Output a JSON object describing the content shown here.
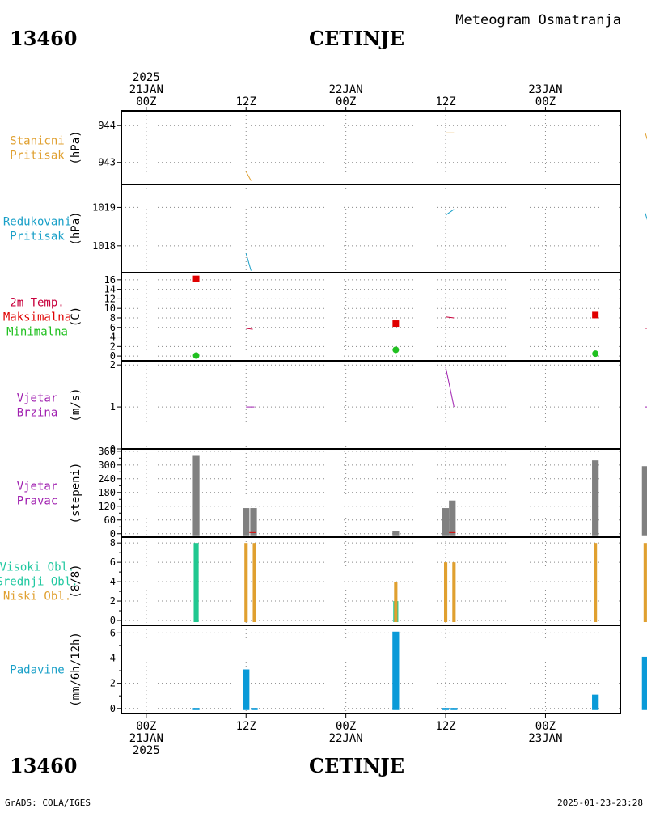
{
  "header": {
    "station_id": "13460",
    "station_name": "CETINJE",
    "title": "Meteogram Osmatranja"
  },
  "footer": {
    "left": "GrADS: COLA/IGES",
    "right": "2025-01-23-23:28"
  },
  "chart_data": {
    "type": "meteogram",
    "time_axis": {
      "unit": "hours since 2025-01-21 00Z",
      "range_hours": [
        -3,
        57
      ],
      "ticks_top": [
        {
          "hour": 0,
          "lines": [
            "2025",
            "21JAN",
            "00Z"
          ]
        },
        {
          "hour": 12,
          "lines": [
            "12Z"
          ]
        },
        {
          "hour": 24,
          "lines": [
            "22JAN",
            "00Z"
          ]
        },
        {
          "hour": 36,
          "lines": [
            "12Z"
          ]
        },
        {
          "hour": 48,
          "lines": [
            "23JAN",
            "00Z"
          ]
        },
        {
          "hour": 60,
          "lines": [
            "12Z"
          ]
        }
      ],
      "ticks_bottom": [
        {
          "hour": 0,
          "lines": [
            "00Z",
            "21JAN",
            "2025"
          ]
        },
        {
          "hour": 12,
          "lines": [
            "12Z"
          ]
        },
        {
          "hour": 24,
          "lines": [
            "00Z",
            "22JAN"
          ]
        },
        {
          "hour": 36,
          "lines": [
            "12Z"
          ]
        },
        {
          "hour": 48,
          "lines": [
            "00Z",
            "23JAN"
          ]
        },
        {
          "hour": 60,
          "lines": [
            "12Z"
          ]
        }
      ]
    },
    "panels": [
      {
        "id": "station-pressure",
        "labels": [
          {
            "text": "Stanicni",
            "color": "#e0a030"
          },
          {
            "text": "Pritisak",
            "color": "#e0a030"
          }
        ],
        "ylabel": "(hPa)",
        "ylim": [
          942.4,
          944.4
        ],
        "yticks": [
          943,
          944
        ],
        "grid_y": [
          943,
          944
        ],
        "series": [
          {
            "kind": "segments",
            "color": "#e0a030",
            "segments": [
              [
                [
                  12,
                  942.75
                ],
                [
                  12.6,
                  942.5
                ]
              ],
              [
                [
                  36,
                  943.8
                ],
                [
                  37,
                  943.8
                ]
              ],
              [
                [
                  60,
                  943.8
                ],
                [
                  60.7,
                  943.3
                ]
              ]
            ]
          }
        ]
      },
      {
        "id": "reduced-pressure",
        "labels": [
          {
            "text": "Redukovani",
            "color": "#1aa0c8"
          },
          {
            "text": "Pritisak",
            "color": "#1aa0c8"
          }
        ],
        "ylabel": "(hPa)",
        "ylim": [
          1017.3,
          1019.6
        ],
        "yticks": [
          1018,
          1019
        ],
        "grid_y": [
          1018,
          1019
        ],
        "series": [
          {
            "kind": "segments",
            "color": "#1aa0c8",
            "segments": [
              [
                [
                  12,
                  1017.8
                ],
                [
                  12.6,
                  1017.35
                ]
              ],
              [
                [
                  36,
                  1018.8
                ],
                [
                  37,
                  1018.95
                ]
              ],
              [
                [
                  60,
                  1018.85
                ],
                [
                  60.8,
                  1018.3
                ]
              ]
            ]
          }
        ]
      },
      {
        "id": "temperature",
        "labels": [
          {
            "text": "2m Temp.",
            "color": "#c8003c"
          },
          {
            "text": "Maksimalna",
            "color": "#e00000"
          },
          {
            "text": "Minimalna",
            "color": "#20c020"
          }
        ],
        "ylabel": "(C)",
        "ylim": [
          -1,
          17.5
        ],
        "yticks": [
          0,
          2,
          4,
          6,
          8,
          10,
          12,
          14,
          16
        ],
        "grid_y": [
          0,
          2,
          4,
          6,
          8,
          10,
          12,
          14,
          16
        ],
        "series": [
          {
            "name": "2m Temp.",
            "kind": "segments",
            "color": "#c8003c",
            "segments": [
              [
                [
                  12,
                  5.8
                ],
                [
                  12.8,
                  5.6
                ]
              ],
              [
                [
                  36,
                  8.2
                ],
                [
                  37,
                  8.0
                ]
              ],
              [
                [
                  60,
                  5.8
                ],
                [
                  61,
                  5.8
                ]
              ]
            ]
          },
          {
            "name": "Maksimalna",
            "kind": "squares",
            "color": "#e00000",
            "points": [
              [
                6,
                16.2
              ],
              [
                30,
                6.8
              ],
              [
                54,
                8.6
              ]
            ]
          },
          {
            "name": "Minimalna",
            "kind": "circles",
            "color": "#20c020",
            "points": [
              [
                6,
                0.1
              ],
              [
                30,
                1.3
              ],
              [
                54,
                0.5
              ]
            ]
          }
        ]
      },
      {
        "id": "wind-speed",
        "labels": [
          {
            "text": "Vjetar",
            "color": "#a020b0"
          },
          {
            "text": "Brzina",
            "color": "#a020b0"
          }
        ],
        "ylabel": "(m/s)",
        "ylim": [
          0,
          2.1
        ],
        "yticks": [
          0,
          1,
          2
        ],
        "grid_y": [
          1,
          2
        ],
        "series": [
          {
            "kind": "segments",
            "color": "#a020b0",
            "segments": [
              [
                [
                  12,
                  1
                ],
                [
                  13,
                  1
                ]
              ],
              [
                [
                  36,
                  1.95
                ],
                [
                  37,
                  1
                ]
              ],
              [
                [
                  60,
                  1
                ],
                [
                  61,
                  1
                ]
              ]
            ]
          }
        ]
      },
      {
        "id": "wind-direction",
        "labels": [
          {
            "text": "Vjetar",
            "color": "#a020b0"
          },
          {
            "text": "Pravac",
            "color": "#a020b0"
          }
        ],
        "ylabel": "(stepeni)",
        "ylim": [
          -15,
          370
        ],
        "yticks": [
          0,
          60,
          120,
          180,
          240,
          300,
          360
        ],
        "extra_ticks": [
          30,
          90,
          150,
          210,
          270,
          330
        ],
        "grid_y": [
          0,
          60,
          120,
          180,
          240,
          300,
          360
        ],
        "bar_color": "#808080",
        "bar_width_hours": 0.8,
        "series": [
          {
            "kind": "bars",
            "color": "#808080",
            "points": [
              [
                6,
                340
              ],
              [
                12,
                112
              ],
              [
                12.9,
                112
              ],
              [
                30,
                10
              ],
              [
                36,
                112
              ],
              [
                36.8,
                145
              ],
              [
                54,
                320
              ],
              [
                60,
                295
              ],
              [
                60.8,
                145
              ]
            ]
          },
          {
            "kind": "segments",
            "color": "#e00000",
            "segments": [
              [
                [
                  12.4,
                  5
                ],
                [
                  13.2,
                  5
                ]
              ],
              [
                [
                  36.4,
                  5
                ],
                [
                  37.2,
                  5
                ]
              ],
              [
                [
                  60.4,
                  5
                ],
                [
                  61.2,
                  5
                ]
              ]
            ]
          }
        ]
      },
      {
        "id": "clouds",
        "labels": [
          {
            "text": "Visoki Obl.",
            "color": "#20c8a0"
          },
          {
            "text": "Srednji Obl.",
            "color": "#20c8a0"
          },
          {
            "text": "Niski Obl.",
            "color": "#e0a030"
          }
        ],
        "ylabel": "(8/8)",
        "ylim": [
          -0.5,
          8.6
        ],
        "yticks": [
          0,
          2,
          4,
          6,
          8
        ],
        "extra_ticks": [
          1,
          3,
          5,
          7
        ],
        "grid_y": [
          0,
          2,
          4,
          6,
          8
        ],
        "series": [
          {
            "name": "Visoki Obl.",
            "kind": "bars",
            "color": "#20c890",
            "width_hours": 0.6,
            "points": [
              [
                6,
                8
              ],
              [
                30,
                2
              ]
            ]
          },
          {
            "name": "Niski Obl.",
            "kind": "bars",
            "color": "#e0a030",
            "width_hours": 0.4,
            "points": [
              [
                12,
                8
              ],
              [
                13,
                8
              ],
              [
                30,
                4
              ],
              [
                36,
                6
              ],
              [
                37,
                6
              ],
              [
                54,
                8
              ],
              [
                60,
                8
              ],
              [
                61,
                8
              ]
            ]
          }
        ]
      },
      {
        "id": "precipitation",
        "labels": [
          {
            "text": "Padavine",
            "color": "#1aa0c8"
          }
        ],
        "ylabel": "(mm/6h/12h)",
        "ylim": [
          -0.4,
          6.6
        ],
        "yticks": [
          0,
          2,
          4,
          6
        ],
        "extra_ticks": [
          1,
          3,
          5
        ],
        "grid_y": [
          0,
          2,
          4,
          6
        ],
        "series": [
          {
            "kind": "bars",
            "color": "#0a9ad8",
            "width_hours": 0.8,
            "points": [
              [
                6,
                0.04
              ],
              [
                12,
                3.1
              ],
              [
                30,
                6.1
              ],
              [
                54,
                1.1
              ],
              [
                60,
                4.1
              ]
            ]
          },
          {
            "kind": "bars",
            "color": "#0a9ad8",
            "width_hours": 0.8,
            "points": [
              [
                13,
                0.04
              ],
              [
                36,
                0.04
              ],
              [
                37,
                0.04
              ],
              [
                61,
                0.04
              ]
            ]
          }
        ]
      }
    ]
  }
}
